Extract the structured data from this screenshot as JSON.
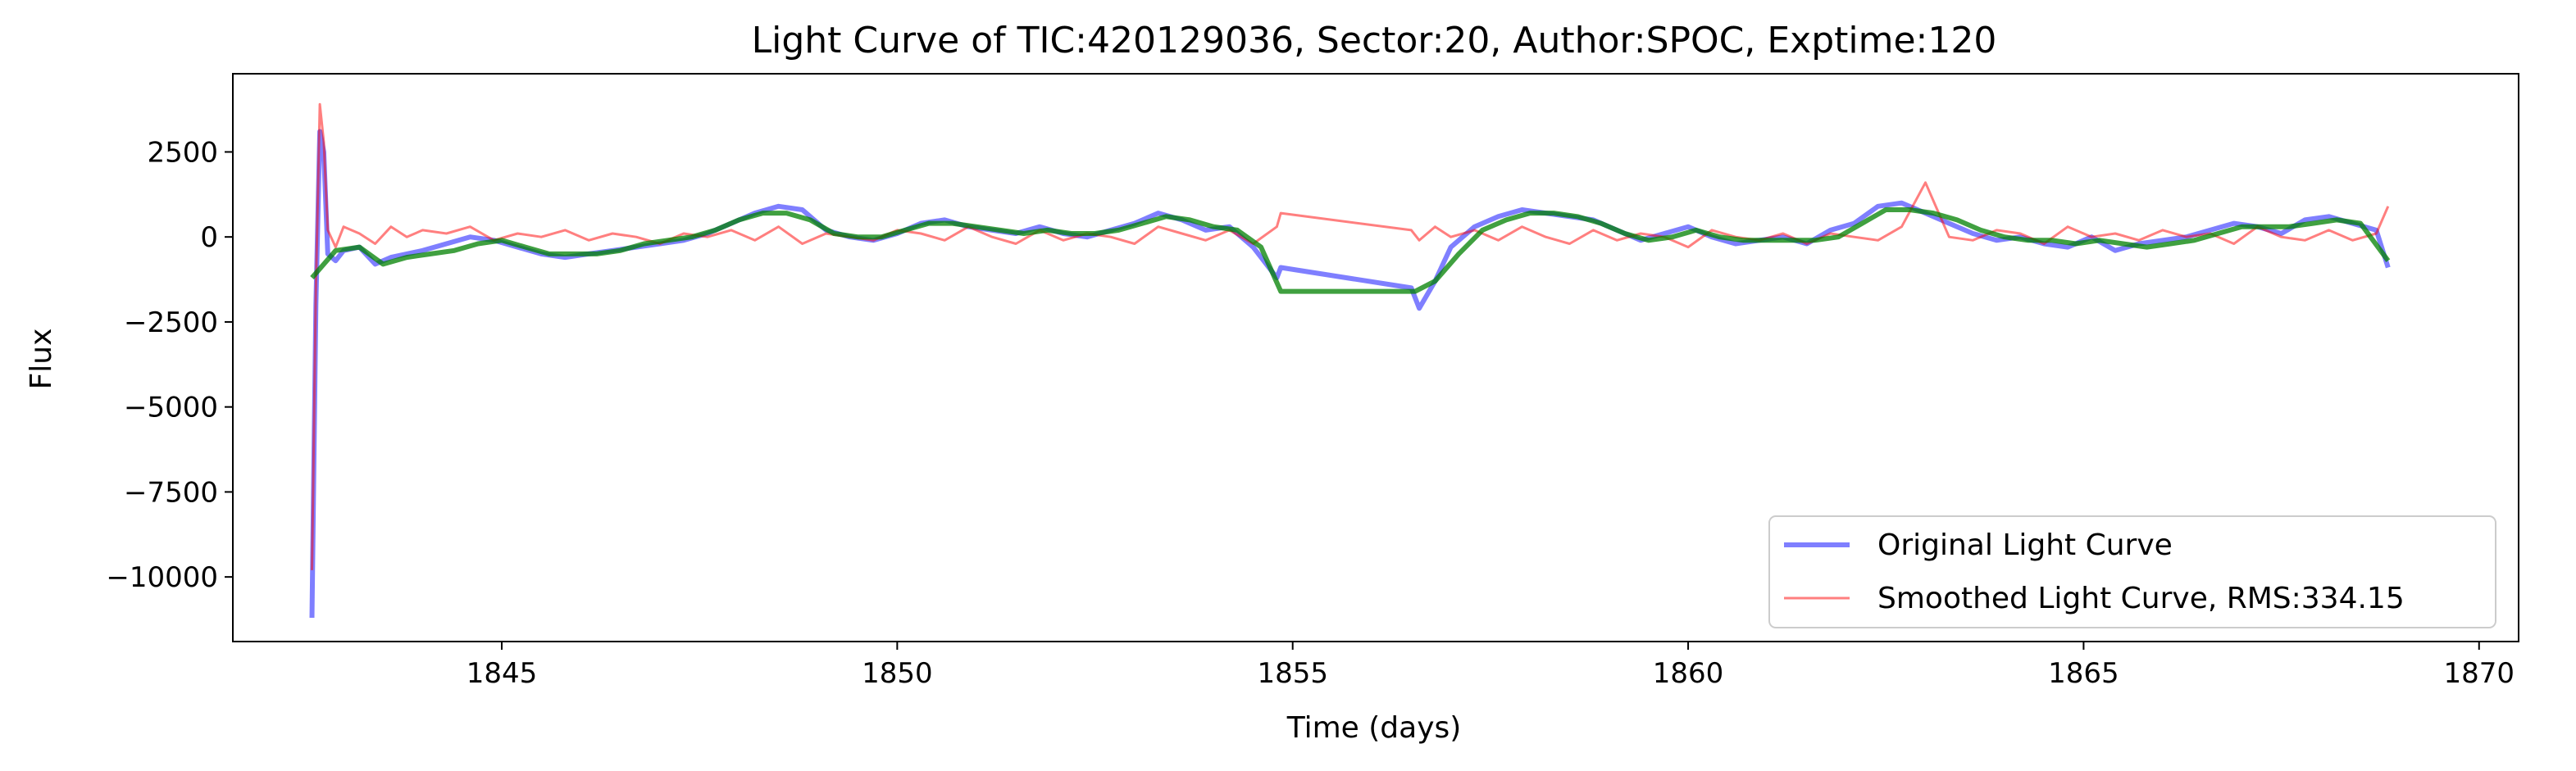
{
  "chart_data": {
    "type": "line",
    "title": "Light Curve of TIC:420129036, Sector:20, Author:SPOC, Exptime:120",
    "xlabel": "Time (days)",
    "ylabel": "Flux",
    "xlim": [
      1841.6,
      1870.5
    ],
    "ylim": [
      -11900,
      4800
    ],
    "xticks": [
      1845,
      1850,
      1855,
      1860,
      1865,
      1870
    ],
    "yticks": [
      2500,
      0,
      -2500,
      -5000,
      -7500,
      -10000
    ],
    "ytick_labels": [
      "2500",
      "0",
      "−2500",
      "−5000",
      "−7500",
      "−10000"
    ],
    "grid": false,
    "legend_position": "bottom-right",
    "series": [
      {
        "name": "Original Light Curve",
        "color": "#0000ff",
        "opacity": 0.5,
        "x": [
          1842.6,
          1842.65,
          1842.7,
          1842.75,
          1842.8,
          1842.9,
          1843.0,
          1843.2,
          1843.4,
          1843.6,
          1843.8,
          1844.0,
          1844.3,
          1844.6,
          1844.9,
          1845.2,
          1845.5,
          1845.8,
          1846.1,
          1846.4,
          1846.7,
          1847.0,
          1847.3,
          1847.6,
          1847.9,
          1848.2,
          1848.5,
          1848.8,
          1849.1,
          1849.4,
          1849.7,
          1850.0,
          1850.3,
          1850.6,
          1850.9,
          1851.2,
          1851.5,
          1851.8,
          1852.1,
          1852.4,
          1852.7,
          1853.0,
          1853.3,
          1853.6,
          1853.9,
          1854.2,
          1854.5,
          1854.8,
          1854.85,
          1856.5,
          1856.6,
          1856.8,
          1857.0,
          1857.3,
          1857.6,
          1857.9,
          1858.2,
          1858.5,
          1858.8,
          1859.1,
          1859.4,
          1859.7,
          1860.0,
          1860.3,
          1860.6,
          1860.9,
          1861.2,
          1861.5,
          1861.8,
          1862.1,
          1862.4,
          1862.7,
          1863.0,
          1863.3,
          1863.6,
          1863.9,
          1864.2,
          1864.5,
          1864.8,
          1865.1,
          1865.4,
          1865.7,
          1866.0,
          1866.3,
          1866.6,
          1866.9,
          1867.2,
          1867.5,
          1867.8,
          1868.1,
          1868.4,
          1868.7,
          1868.85
        ],
        "values": [
          -11200,
          -2000,
          3100,
          2500,
          -500,
          -700,
          -400,
          -300,
          -800,
          -600,
          -500,
          -400,
          -200,
          0,
          -100,
          -300,
          -500,
          -600,
          -500,
          -400,
          -300,
          -200,
          -100,
          100,
          400,
          700,
          900,
          800,
          200,
          0,
          -100,
          100,
          400,
          500,
          300,
          200,
          100,
          300,
          100,
          0,
          200,
          400,
          700,
          500,
          200,
          300,
          -300,
          -1200,
          -900,
          -1500,
          -2100,
          -1300,
          -300,
          300,
          600,
          800,
          700,
          600,
          500,
          200,
          -100,
          100,
          300,
          0,
          -200,
          -100,
          0,
          -200,
          200,
          400,
          900,
          1000,
          700,
          400,
          100,
          -100,
          0,
          -200,
          -300,
          0,
          -400,
          -200,
          -100,
          0,
          200,
          400,
          300,
          100,
          500,
          600,
          400,
          200,
          -900
        ]
      },
      {
        "name": "Smoothed Light Curve, RMS:334.15",
        "color": "#ff0000",
        "opacity": 0.5,
        "x": [
          1842.6,
          1842.65,
          1842.7,
          1842.75,
          1842.8,
          1842.9,
          1843.0,
          1843.2,
          1843.4,
          1843.6,
          1843.8,
          1844.0,
          1844.3,
          1844.6,
          1844.9,
          1845.2,
          1845.5,
          1845.8,
          1846.1,
          1846.4,
          1846.7,
          1847.0,
          1847.3,
          1847.6,
          1847.9,
          1848.2,
          1848.5,
          1848.8,
          1849.1,
          1849.4,
          1849.7,
          1850.0,
          1850.3,
          1850.6,
          1850.9,
          1851.2,
          1851.5,
          1851.8,
          1852.1,
          1852.4,
          1852.7,
          1853.0,
          1853.3,
          1853.6,
          1853.9,
          1854.2,
          1854.5,
          1854.8,
          1854.85,
          1856.5,
          1856.6,
          1856.8,
          1857.0,
          1857.3,
          1857.6,
          1857.9,
          1858.2,
          1858.5,
          1858.8,
          1859.1,
          1859.4,
          1859.7,
          1860.0,
          1860.3,
          1860.6,
          1860.9,
          1861.2,
          1861.5,
          1861.8,
          1862.1,
          1862.4,
          1862.7,
          1863.0,
          1863.3,
          1863.6,
          1863.9,
          1864.2,
          1864.5,
          1864.8,
          1865.1,
          1865.4,
          1865.7,
          1866.0,
          1866.3,
          1866.6,
          1866.9,
          1867.2,
          1867.5,
          1867.8,
          1868.1,
          1868.4,
          1868.7,
          1868.85
        ],
        "values": [
          -9800,
          -1500,
          3900,
          2800,
          200,
          -300,
          300,
          100,
          -200,
          300,
          0,
          200,
          100,
          300,
          -100,
          100,
          0,
          200,
          -100,
          100,
          0,
          -200,
          100,
          0,
          200,
          -100,
          300,
          -200,
          100,
          0,
          -100,
          200,
          100,
          -100,
          300,
          0,
          -200,
          200,
          -100,
          100,
          0,
          -200,
          300,
          100,
          -100,
          200,
          -200,
          300,
          700,
          200,
          -100,
          300,
          0,
          200,
          -100,
          300,
          0,
          -200,
          200,
          -100,
          100,
          0,
          -300,
          200,
          0,
          -100,
          100,
          -200,
          100,
          0,
          -100,
          300,
          1600,
          0,
          -100,
          200,
          100,
          -200,
          300,
          0,
          100,
          -100,
          200,
          0,
          100,
          -200,
          300,
          0,
          -100,
          200,
          -100,
          100,
          900
        ]
      },
      {
        "name": "",
        "color": "#008000",
        "opacity": 0.75,
        "x": [
          1842.6,
          1842.9,
          1843.2,
          1843.5,
          1843.8,
          1844.1,
          1844.4,
          1844.7,
          1845.0,
          1845.3,
          1845.6,
          1845.9,
          1846.2,
          1846.5,
          1846.8,
          1847.1,
          1847.4,
          1847.7,
          1848.0,
          1848.3,
          1848.6,
          1848.9,
          1849.2,
          1849.5,
          1849.8,
          1850.1,
          1850.4,
          1850.7,
          1851.0,
          1851.3,
          1851.6,
          1851.9,
          1852.2,
          1852.5,
          1852.8,
          1853.1,
          1853.4,
          1853.7,
          1854.0,
          1854.3,
          1854.6,
          1854.85,
          1856.55,
          1856.8,
          1857.1,
          1857.4,
          1857.7,
          1858.0,
          1858.3,
          1858.6,
          1858.9,
          1859.2,
          1859.5,
          1859.8,
          1860.1,
          1860.4,
          1860.7,
          1861.0,
          1861.3,
          1861.6,
          1861.9,
          1862.2,
          1862.5,
          1862.8,
          1863.1,
          1863.4,
          1863.7,
          1864.0,
          1864.3,
          1864.6,
          1864.9,
          1865.2,
          1865.5,
          1865.8,
          1866.1,
          1866.4,
          1866.7,
          1867.0,
          1867.3,
          1867.6,
          1867.9,
          1868.2,
          1868.5,
          1868.85
        ],
        "values": [
          -1200,
          -400,
          -300,
          -800,
          -600,
          -500,
          -400,
          -200,
          -100,
          -300,
          -500,
          -500,
          -500,
          -400,
          -200,
          -100,
          0,
          200,
          500,
          700,
          700,
          500,
          100,
          0,
          0,
          200,
          400,
          400,
          300,
          200,
          100,
          200,
          100,
          100,
          200,
          400,
          600,
          500,
          300,
          200,
          -300,
          -1600,
          -1600,
          -1300,
          -500,
          200,
          500,
          700,
          700,
          600,
          400,
          100,
          -100,
          0,
          200,
          0,
          -100,
          -100,
          -100,
          -100,
          0,
          400,
          800,
          800,
          700,
          500,
          200,
          0,
          -100,
          -100,
          -200,
          -100,
          -200,
          -300,
          -200,
          -100,
          100,
          300,
          300,
          300,
          400,
          500,
          400,
          -700
        ]
      }
    ]
  }
}
